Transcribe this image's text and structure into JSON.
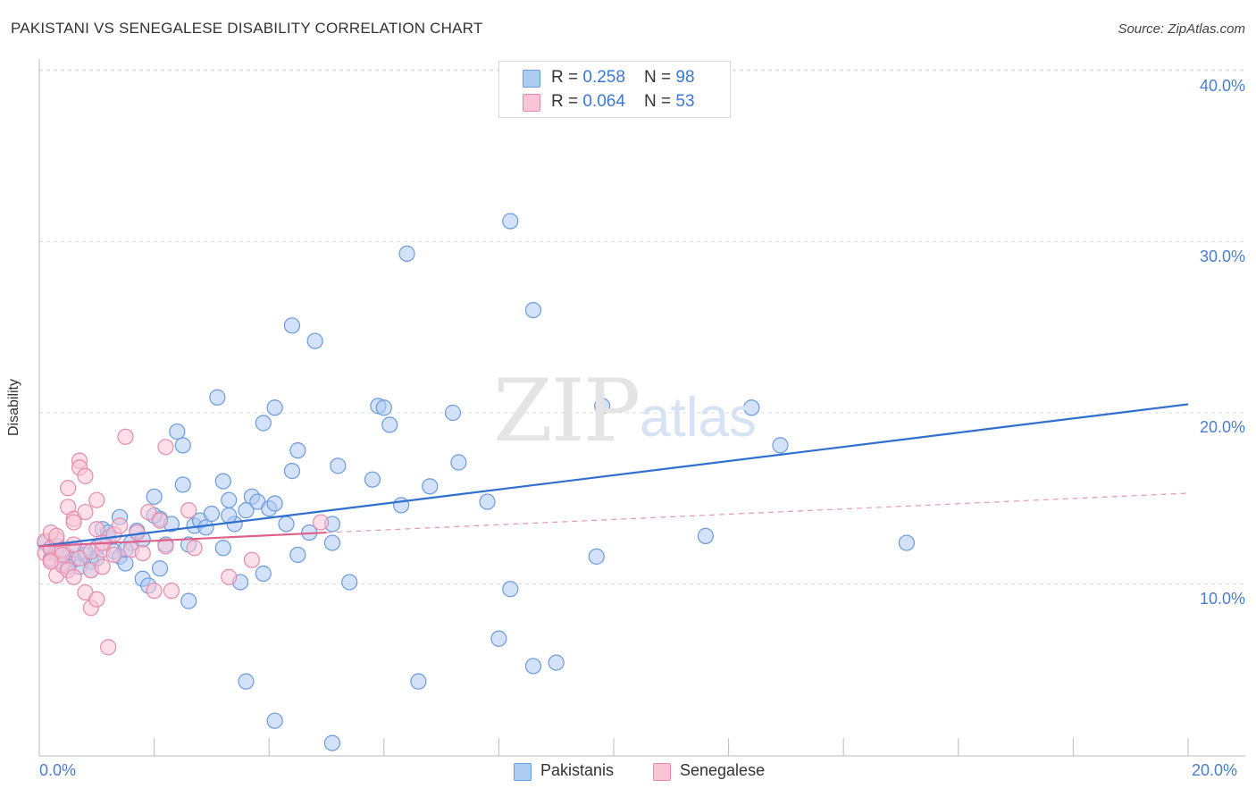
{
  "title": "PAKISTANI VS SENEGALESE DISABILITY CORRELATION CHART",
  "source": "Source: ZipAtlas.com",
  "watermark": {
    "zip": "ZIP",
    "atlas": "atlas"
  },
  "legend": {
    "rows": [
      {
        "r_label": "R = ",
        "r_value": "0.258",
        "n_label": "N = ",
        "n_value": "98",
        "color": "#aecbf2",
        "border": "#6a9be0"
      },
      {
        "r_label": "R = ",
        "r_value": "0.064",
        "n_label": "N = ",
        "n_value": "53",
        "color": "#f9c4d5",
        "border": "#e88aa8"
      }
    ]
  },
  "bottom_legend": [
    {
      "label": "Pakistanis",
      "color": "#aecbf2",
      "border": "#6a9be0"
    },
    {
      "label": "Senegalese",
      "color": "#f9c4d5",
      "border": "#e88aa8"
    }
  ],
  "chart_data": {
    "type": "scatter",
    "title": "PAKISTANI VS SENEGALESE DISABILITY CORRELATION CHART",
    "xlabel": "",
    "ylabel": "Disability",
    "xlim": [
      0,
      20
    ],
    "ylim": [
      0,
      40
    ],
    "x_tick_labels": [
      "0.0%",
      "20.0%"
    ],
    "y_ticks": [
      10,
      20,
      30,
      40
    ],
    "y_tick_labels": [
      "10.0%",
      "20.0%",
      "30.0%",
      "40.0%"
    ],
    "grid": true,
    "series": [
      {
        "name": "Pakistanis",
        "color": "#6a9be0",
        "fill": "#aecbf2",
        "R": 0.258,
        "N": 98,
        "trend": {
          "x": [
            0,
            20
          ],
          "y": [
            12.2,
            20.5
          ],
          "style": "solid"
        },
        "points": [
          [
            0.1,
            12.4
          ],
          [
            0.2,
            12.0
          ],
          [
            0.2,
            11.5
          ],
          [
            0.3,
            11.8
          ],
          [
            0.3,
            12.2
          ],
          [
            0.4,
            11.2
          ],
          [
            0.4,
            12.0
          ],
          [
            0.5,
            11.6
          ],
          [
            0.6,
            11.4
          ],
          [
            0.7,
            11.0
          ],
          [
            0.8,
            11.7
          ],
          [
            0.9,
            11.3
          ],
          [
            1.0,
            12.1
          ],
          [
            1.1,
            13.2
          ],
          [
            1.2,
            12.7
          ],
          [
            1.3,
            11.9
          ],
          [
            1.4,
            11.6
          ],
          [
            1.5,
            11.2
          ],
          [
            1.6,
            12.4
          ],
          [
            1.7,
            13.1
          ],
          [
            1.8,
            10.3
          ],
          [
            1.9,
            9.9
          ],
          [
            2.0,
            15.1
          ],
          [
            2.1,
            13.8
          ],
          [
            2.2,
            12.3
          ],
          [
            2.3,
            13.5
          ],
          [
            2.4,
            18.9
          ],
          [
            2.5,
            15.8
          ],
          [
            2.5,
            18.1
          ],
          [
            2.6,
            9.0
          ],
          [
            2.7,
            13.4
          ],
          [
            2.8,
            13.7
          ],
          [
            2.9,
            13.3
          ],
          [
            3.0,
            14.1
          ],
          [
            3.1,
            20.9
          ],
          [
            3.2,
            16.0
          ],
          [
            3.2,
            12.1
          ],
          [
            3.3,
            14.9
          ],
          [
            3.4,
            13.5
          ],
          [
            3.5,
            10.1
          ],
          [
            3.6,
            14.3
          ],
          [
            3.7,
            15.1
          ],
          [
            3.8,
            14.8
          ],
          [
            3.9,
            19.4
          ],
          [
            3.9,
            10.6
          ],
          [
            4.0,
            14.4
          ],
          [
            4.1,
            14.7
          ],
          [
            4.1,
            20.3
          ],
          [
            4.3,
            13.5
          ],
          [
            4.4,
            16.6
          ],
          [
            4.4,
            25.1
          ],
          [
            4.5,
            17.8
          ],
          [
            4.5,
            11.7
          ],
          [
            4.7,
            13.0
          ],
          [
            4.8,
            24.2
          ],
          [
            5.1,
            13.5
          ],
          [
            5.1,
            12.4
          ],
          [
            5.2,
            16.9
          ],
          [
            5.4,
            10.1
          ],
          [
            5.8,
            16.1
          ],
          [
            5.9,
            20.4
          ],
          [
            6.0,
            20.3
          ],
          [
            6.1,
            19.3
          ],
          [
            6.3,
            14.6
          ],
          [
            6.4,
            29.3
          ],
          [
            6.8,
            15.7
          ],
          [
            7.2,
            20.0
          ],
          [
            7.3,
            17.1
          ],
          [
            7.8,
            14.8
          ],
          [
            8.0,
            6.8
          ],
          [
            8.2,
            9.7
          ],
          [
            8.2,
            31.2
          ],
          [
            8.6,
            5.2
          ],
          [
            8.6,
            26.0
          ],
          [
            9.0,
            5.4
          ],
          [
            9.7,
            11.6
          ],
          [
            9.8,
            20.4
          ],
          [
            11.6,
            12.8
          ],
          [
            12.4,
            20.3
          ],
          [
            12.9,
            18.1
          ],
          [
            15.1,
            12.4
          ],
          [
            0.9,
            10.8
          ],
          [
            1.2,
            13.0
          ],
          [
            1.5,
            12.0
          ],
          [
            2.1,
            10.9
          ],
          [
            3.6,
            4.3
          ],
          [
            2.0,
            14.0
          ],
          [
            3.3,
            14.0
          ],
          [
            4.1,
            2.0
          ],
          [
            5.1,
            0.7
          ],
          [
            6.6,
            4.3
          ],
          [
            1.4,
            13.9
          ],
          [
            0.6,
            12.0
          ],
          [
            0.5,
            11.0
          ],
          [
            2.6,
            12.3
          ],
          [
            1.0,
            11.5
          ],
          [
            1.8,
            12.6
          ],
          [
            0.8,
            11.9
          ]
        ]
      },
      {
        "name": "Senegalese",
        "color": "#e88aa8",
        "fill": "#f9c4d5",
        "R": 0.064,
        "N": 53,
        "trend": {
          "x": [
            0,
            5
          ],
          "y": [
            12.2,
            13.0
          ],
          "style": "solid",
          "extended": {
            "x": [
              5,
              20
            ],
            "y": [
              13.0,
              15.3
            ],
            "style": "dashed"
          }
        },
        "points": [
          [
            0.1,
            12.5
          ],
          [
            0.1,
            11.8
          ],
          [
            0.2,
            12.1
          ],
          [
            0.2,
            11.4
          ],
          [
            0.3,
            12.6
          ],
          [
            0.3,
            10.5
          ],
          [
            0.4,
            12.0
          ],
          [
            0.4,
            11.1
          ],
          [
            0.5,
            10.8
          ],
          [
            0.5,
            14.5
          ],
          [
            0.5,
            15.6
          ],
          [
            0.6,
            13.8
          ],
          [
            0.6,
            12.3
          ],
          [
            0.6,
            10.4
          ],
          [
            0.7,
            11.5
          ],
          [
            0.7,
            17.2
          ],
          [
            0.7,
            16.8
          ],
          [
            0.8,
            16.3
          ],
          [
            0.8,
            14.2
          ],
          [
            0.8,
            9.5
          ],
          [
            0.9,
            11.9
          ],
          [
            0.9,
            10.8
          ],
          [
            0.9,
            8.6
          ],
          [
            1.0,
            9.1
          ],
          [
            1.0,
            14.9
          ],
          [
            1.0,
            13.2
          ],
          [
            1.1,
            11.0
          ],
          [
            1.1,
            12.0
          ],
          [
            1.2,
            6.3
          ],
          [
            1.3,
            11.7
          ],
          [
            1.3,
            12.9
          ],
          [
            1.4,
            13.4
          ],
          [
            1.5,
            18.6
          ],
          [
            1.6,
            12.0
          ],
          [
            1.7,
            13.0
          ],
          [
            1.8,
            11.8
          ],
          [
            1.9,
            14.2
          ],
          [
            2.0,
            9.6
          ],
          [
            2.1,
            13.7
          ],
          [
            2.2,
            18.0
          ],
          [
            2.2,
            12.2
          ],
          [
            2.3,
            9.6
          ],
          [
            2.6,
            14.3
          ],
          [
            2.7,
            12.1
          ],
          [
            3.3,
            10.4
          ],
          [
            3.7,
            11.4
          ],
          [
            4.9,
            13.6
          ],
          [
            0.2,
            13.0
          ],
          [
            0.3,
            12.8
          ],
          [
            0.4,
            11.7
          ],
          [
            0.6,
            13.6
          ],
          [
            1.1,
            12.4
          ],
          [
            0.2,
            11.3
          ]
        ]
      }
    ]
  }
}
